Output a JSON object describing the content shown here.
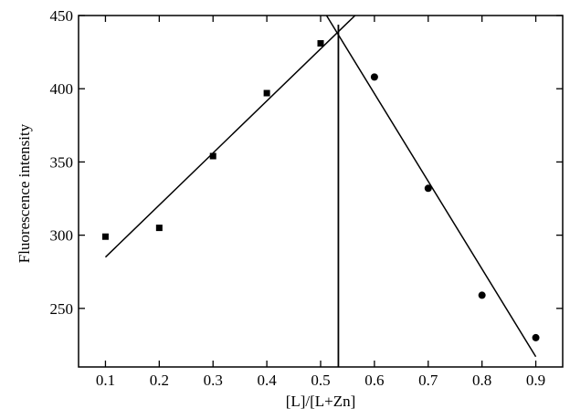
{
  "chart_data": {
    "type": "scatter",
    "xlabel": "[L]/[L+Zn]",
    "ylabel": "Fluorescence intensity",
    "xlim": [
      0.05,
      0.95
    ],
    "xticks": [
      0.1,
      0.2,
      0.3,
      0.4,
      0.5,
      0.6,
      0.7,
      0.8,
      0.9
    ],
    "ylim": [
      210,
      450
    ],
    "yticks": [
      250,
      300,
      350,
      400,
      450
    ],
    "series": [
      {
        "color": "#000000",
        "marker": "square",
        "x": [
          0.1,
          0.2,
          0.3,
          0.4,
          0.5
        ],
        "values": [
          299,
          305,
          354,
          397,
          431
        ]
      },
      {
        "color": "#000000",
        "marker": "circle",
        "x": [
          0.6,
          0.7,
          0.8,
          0.9
        ],
        "values": [
          408,
          332,
          259,
          230
        ]
      }
    ],
    "fit_lines": [
      {
        "x": [
          0.1,
          0.564
        ],
        "values": [
          285,
          450
        ]
      },
      {
        "x": [
          0.511,
          0.9
        ],
        "values": [
          450,
          217
        ]
      }
    ],
    "vline": 0.533
  }
}
